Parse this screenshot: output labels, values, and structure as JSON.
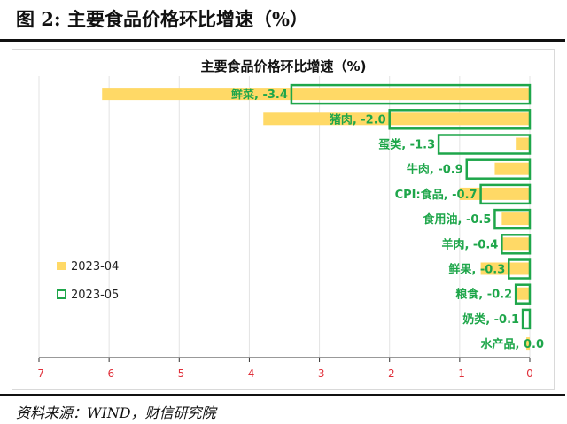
{
  "figure_title": "图 2:  主要食品价格环比增速（%）",
  "source": "资料来源：WIND，财信研究院",
  "chart_data": {
    "type": "bar",
    "orientation": "horizontal",
    "title": "主要食品价格环比增速（%)",
    "categories": [
      "鲜菜",
      "猪肉",
      "蛋类",
      "牛肉",
      "CPI:食品",
      "食用油",
      "羊肉",
      "鲜果",
      "粮食",
      "奶类",
      "水产品"
    ],
    "series": [
      {
        "name": "2023-04",
        "style": "filled",
        "color": "#FFD966",
        "values": [
          -6.1,
          -3.8,
          -0.2,
          -0.5,
          -1.0,
          -0.4,
          -0.4,
          -0.7,
          -0.2,
          0.0,
          -0.05
        ]
      },
      {
        "name": "2023-05",
        "style": "outline",
        "color": "#1EA64A",
        "values": [
          -3.4,
          -2.0,
          -1.3,
          -0.9,
          -0.7,
          -0.5,
          -0.4,
          -0.3,
          -0.2,
          -0.1,
          0.0
        ]
      }
    ],
    "data_labels": [
      "鲜菜, -3.4",
      "猪肉, -2.0",
      "蛋类, -1.3",
      "牛肉, -0.9",
      "CPI:食品, -0.7",
      "食用油, -0.5",
      "羊肉, -0.4",
      "鲜果, -0.3",
      "粮食, -0.2",
      "奶类, -0.1",
      "水产品, 0.0"
    ],
    "xlim": [
      -7,
      0
    ],
    "xticks": [
      "-7",
      "-6",
      "-5",
      "-4",
      "-3",
      "-2",
      "-1",
      "0"
    ],
    "tick_label_color": "#E0303A",
    "grid": "vertical",
    "legend": "left"
  }
}
